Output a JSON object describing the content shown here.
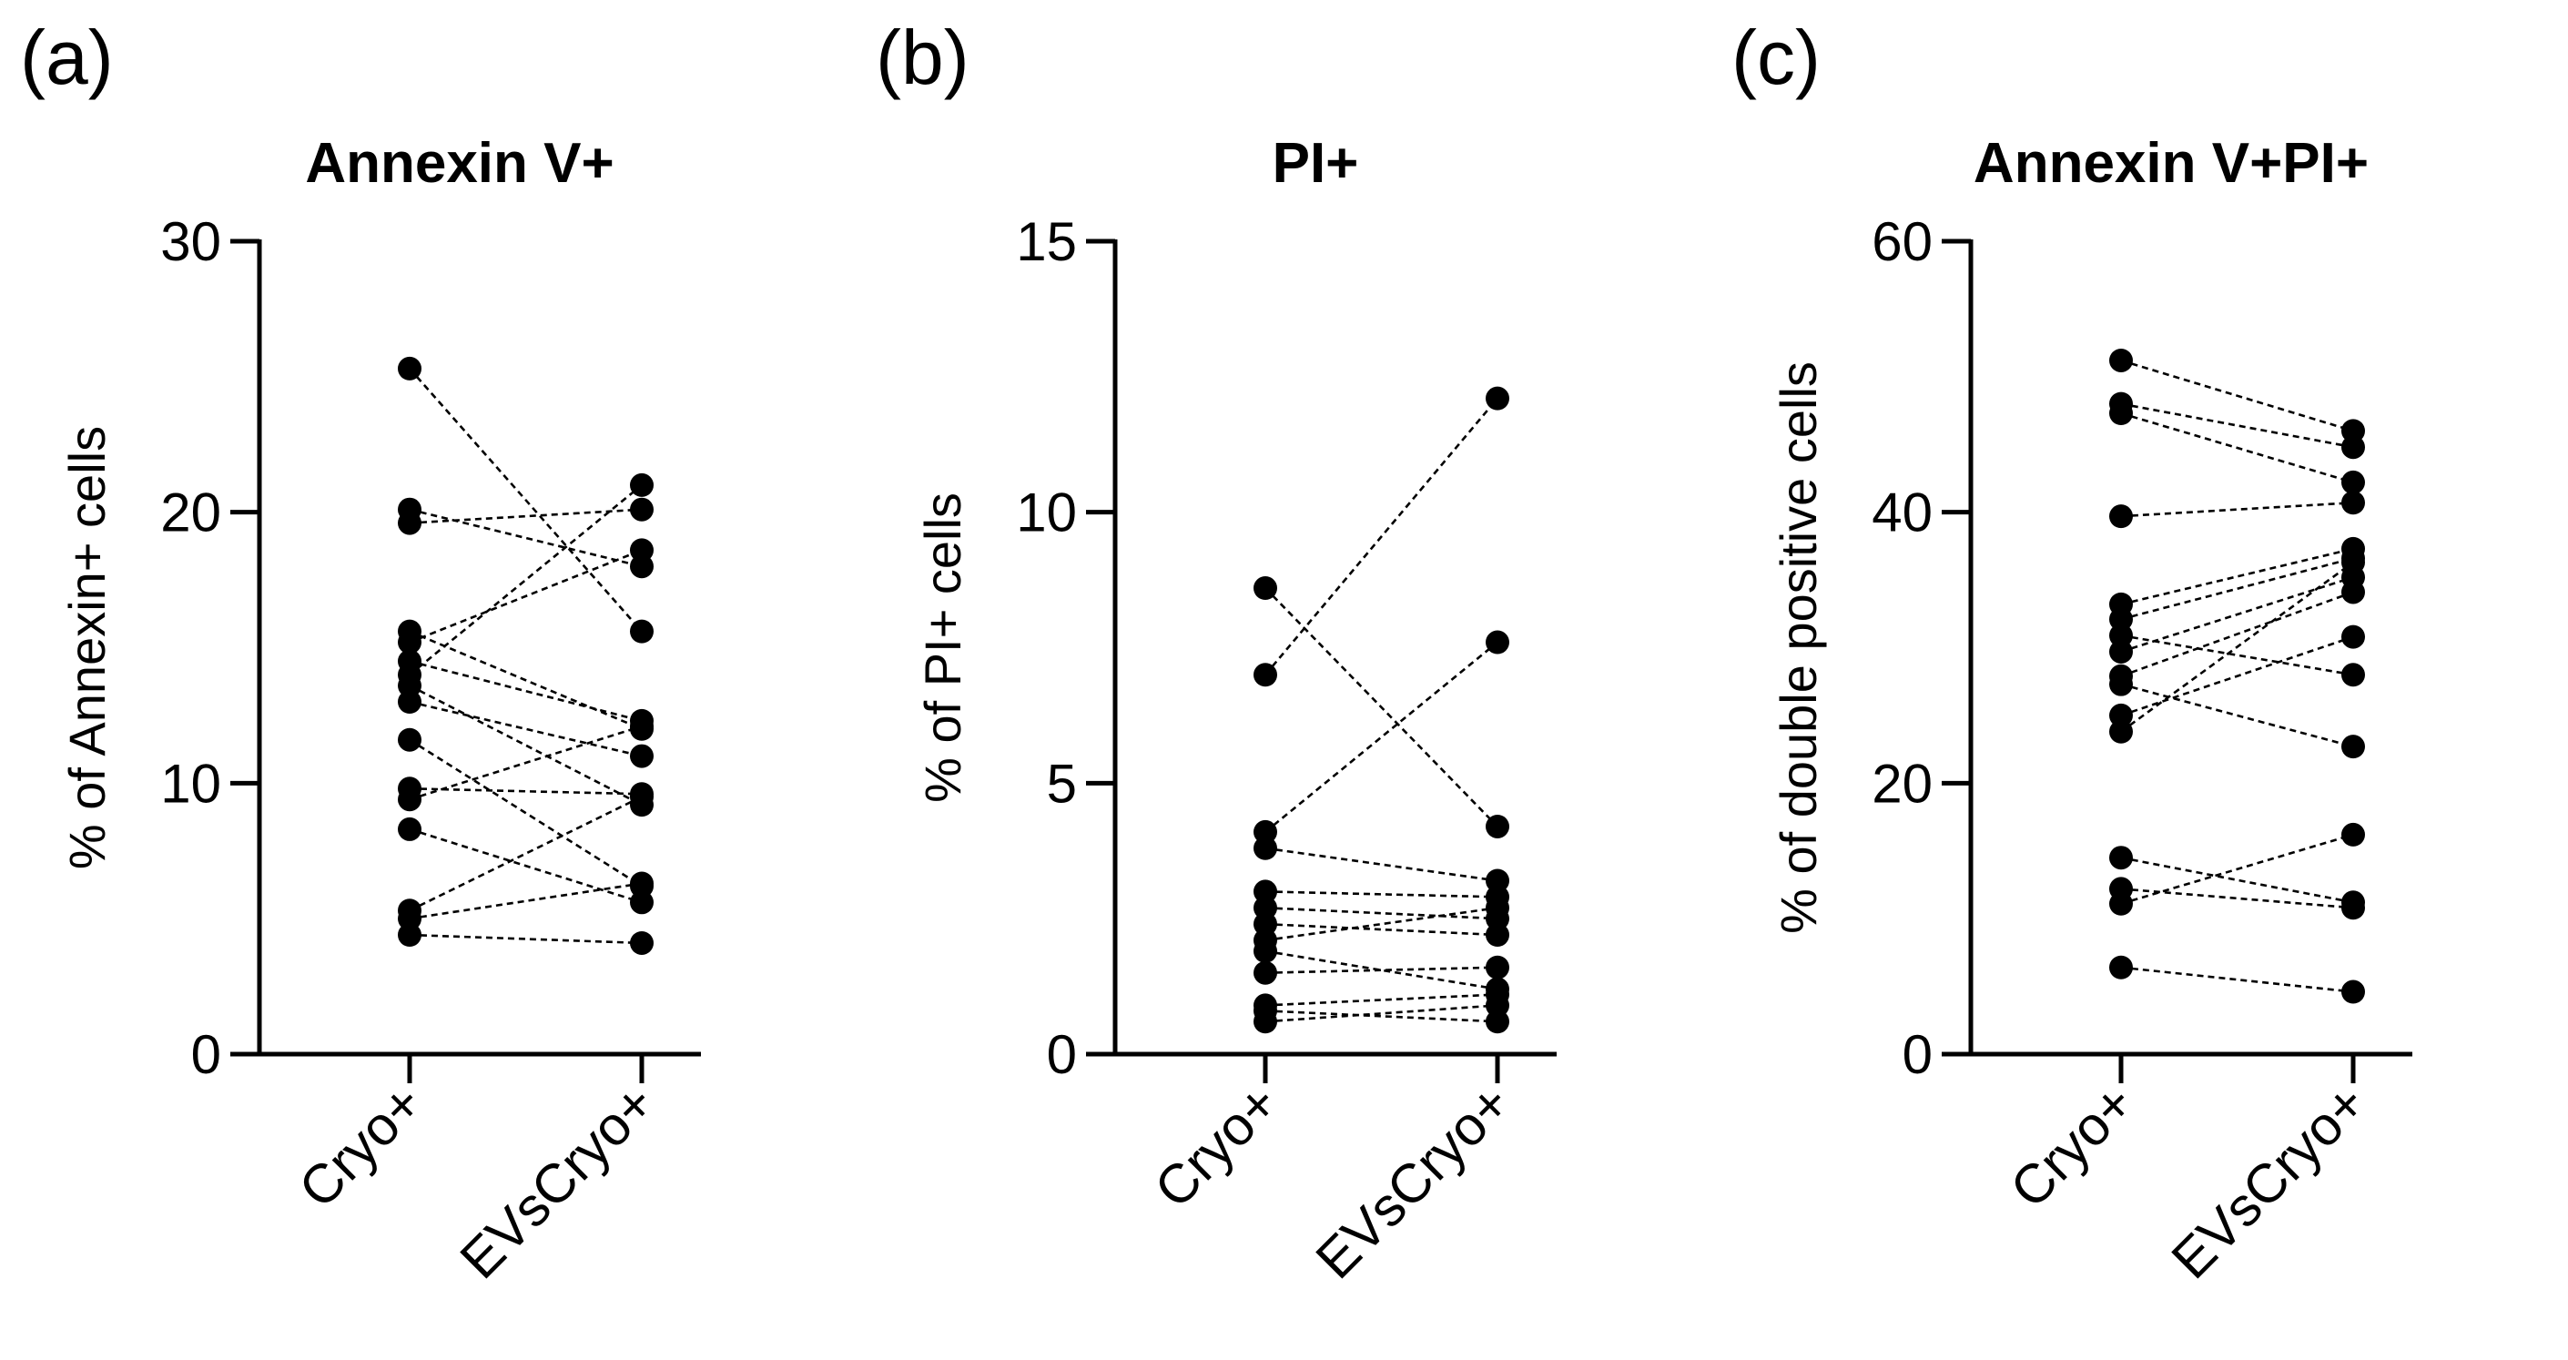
{
  "chart_data": [
    {
      "type": "scatter",
      "panel_label": "(a)",
      "title": "Annexin V+",
      "ylabel": "% of Annexin+ cells",
      "ylim": [
        0,
        30
      ],
      "yticks": [
        "0",
        "10",
        "20",
        "30"
      ],
      "categories": [
        "Cryo+",
        "EVsCryo+"
      ],
      "pairs": [
        [
          25.3,
          15.6
        ],
        [
          20.1,
          18.0
        ],
        [
          19.6,
          20.1
        ],
        [
          15.6,
          12.0
        ],
        [
          15.2,
          18.6
        ],
        [
          14.5,
          12.3
        ],
        [
          14.0,
          21.0
        ],
        [
          13.6,
          9.2
        ],
        [
          13.0,
          11.0
        ],
        [
          11.6,
          6.2
        ],
        [
          9.8,
          9.6
        ],
        [
          9.4,
          12.1
        ],
        [
          8.3,
          5.6
        ],
        [
          5.3,
          9.5
        ],
        [
          5.0,
          6.3
        ],
        [
          4.4,
          4.1
        ]
      ]
    },
    {
      "type": "scatter",
      "panel_label": "(b)",
      "title": "PI+",
      "ylabel": "% of PI+ cells",
      "ylim": [
        0,
        15
      ],
      "yticks": [
        "0",
        "5",
        "10",
        "15"
      ],
      "categories": [
        "Cryo+",
        "EVsCryo+"
      ],
      "pairs": [
        [
          8.6,
          4.2
        ],
        [
          7.0,
          12.1
        ],
        [
          4.1,
          7.6
        ],
        [
          3.8,
          3.2
        ],
        [
          3.0,
          2.9
        ],
        [
          2.7,
          2.5
        ],
        [
          2.4,
          2.2
        ],
        [
          2.1,
          2.7
        ],
        [
          1.9,
          1.2
        ],
        [
          1.5,
          1.6
        ],
        [
          0.9,
          1.1
        ],
        [
          0.8,
          0.6
        ],
        [
          0.6,
          0.9
        ]
      ]
    },
    {
      "type": "scatter",
      "panel_label": "(c)",
      "title": "Annexin V+PI+",
      "ylabel": "% of double positive cells",
      "ylim": [
        0,
        60
      ],
      "yticks": [
        "0",
        "20",
        "40",
        "60"
      ],
      "categories": [
        "Cryo+",
        "EVsCryo+"
      ],
      "pairs": [
        [
          51.2,
          46.0
        ],
        [
          48.0,
          44.8
        ],
        [
          47.3,
          42.2
        ],
        [
          39.7,
          40.7
        ],
        [
          33.2,
          37.3
        ],
        [
          32.1,
          36.6
        ],
        [
          30.9,
          28.0
        ],
        [
          29.7,
          35.2
        ],
        [
          27.9,
          34.1
        ],
        [
          27.3,
          22.7
        ],
        [
          25.0,
          30.8
        ],
        [
          23.8,
          36.3
        ],
        [
          14.5,
          11.2
        ],
        [
          12.2,
          10.8
        ],
        [
          11.1,
          16.2
        ],
        [
          6.4,
          4.6
        ]
      ]
    }
  ]
}
